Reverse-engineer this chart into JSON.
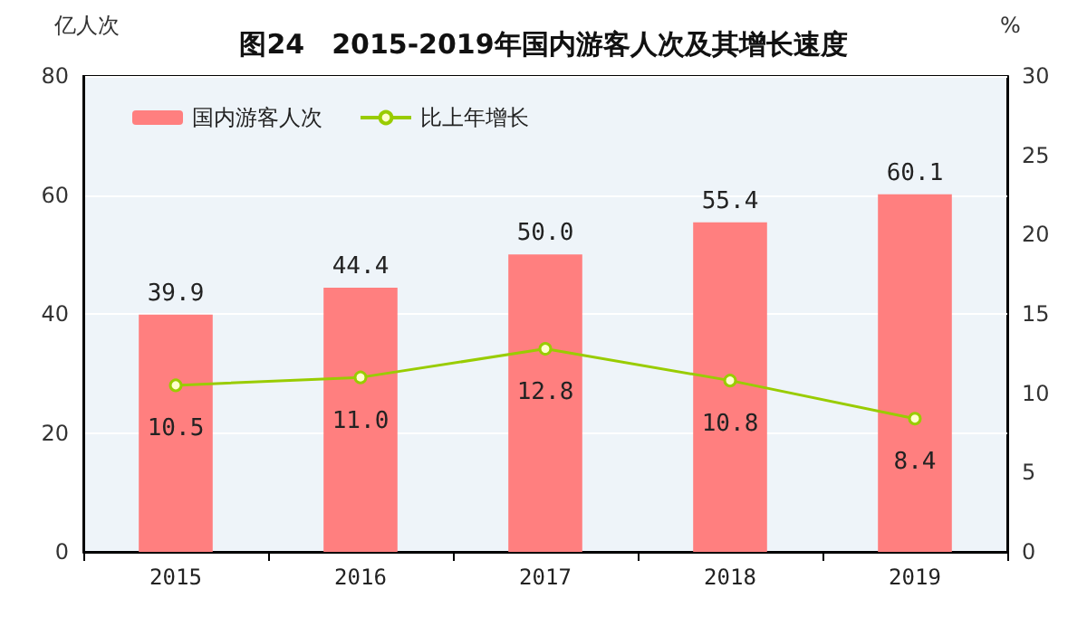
{
  "chart_data": {
    "type": "bar",
    "title": "图24　2015-2019年国内游客人次及其增长速度",
    "ylabel": "亿人次",
    "y2label": "%",
    "categories": [
      "2015",
      "2016",
      "2017",
      "2018",
      "2019"
    ],
    "series": [
      {
        "name": "国内游客人次",
        "color": "#ff7f7f",
        "values": [
          39.9,
          44.4,
          50.0,
          55.4,
          60.1
        ],
        "value_labels": [
          "39.9",
          "44.4",
          "50.0",
          "55.4",
          "60.1"
        ]
      },
      {
        "name": "比上年增长",
        "type": "line",
        "axis": "y2",
        "color": "#99cc00",
        "marker": "circle",
        "values": [
          10.5,
          11.0,
          12.8,
          10.8,
          8.4
        ],
        "value_labels": [
          "10.5",
          "11.0",
          "12.8",
          "10.8",
          "8.4"
        ]
      }
    ],
    "ylim": [
      0,
      80
    ],
    "yticks": [
      0,
      20,
      40,
      60,
      80
    ],
    "y2lim": [
      0,
      30
    ],
    "y2ticks": [
      0,
      5,
      10,
      15,
      20,
      25,
      30
    ],
    "grid": "y",
    "legend": "top left"
  }
}
